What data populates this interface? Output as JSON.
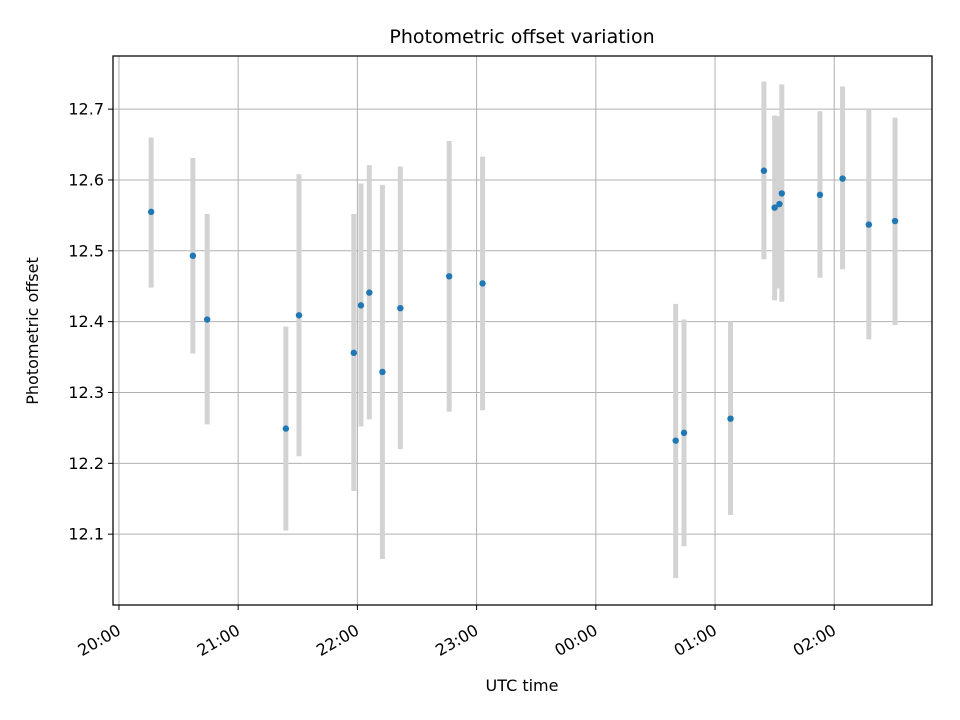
{
  "chart_data": {
    "type": "scatter",
    "title": "Photometric offset variation",
    "xlabel": "UTC time",
    "ylabel": "Photometric offset",
    "grid": true,
    "x_axis_unit": "hours (UTC), values past 24 are after midnight",
    "xlim": [
      19.95,
      26.82
    ],
    "ylim": [
      12.0,
      12.775
    ],
    "x_ticks": [
      {
        "value": 20,
        "label": "20:00"
      },
      {
        "value": 21,
        "label": "21:00"
      },
      {
        "value": 22,
        "label": "22:00"
      },
      {
        "value": 23,
        "label": "23:00"
      },
      {
        "value": 24,
        "label": "00:00"
      },
      {
        "value": 25,
        "label": "01:00"
      },
      {
        "value": 26,
        "label": "02:00"
      }
    ],
    "y_ticks": [
      {
        "value": 12.1,
        "label": "12.1"
      },
      {
        "value": 12.2,
        "label": "12.2"
      },
      {
        "value": 12.3,
        "label": "12.3"
      },
      {
        "value": 12.4,
        "label": "12.4"
      },
      {
        "value": 12.5,
        "label": "12.5"
      },
      {
        "value": 12.6,
        "label": "12.6"
      },
      {
        "value": 12.7,
        "label": "12.7"
      }
    ],
    "point_color": "#1f77b4",
    "errorbar_color": "#d3d3d3",
    "series": [
      {
        "points": [
          {
            "x": 20.27,
            "y": 12.555,
            "lo": 12.448,
            "hi": 12.66
          },
          {
            "x": 20.62,
            "y": 12.493,
            "lo": 12.355,
            "hi": 12.631
          },
          {
            "x": 20.74,
            "y": 12.403,
            "lo": 12.255,
            "hi": 12.552
          },
          {
            "x": 21.4,
            "y": 12.249,
            "lo": 12.105,
            "hi": 12.393
          },
          {
            "x": 21.51,
            "y": 12.409,
            "lo": 12.21,
            "hi": 12.608
          },
          {
            "x": 21.97,
            "y": 12.356,
            "lo": 12.161,
            "hi": 12.552
          },
          {
            "x": 22.03,
            "y": 12.423,
            "lo": 12.252,
            "hi": 12.595
          },
          {
            "x": 22.1,
            "y": 12.441,
            "lo": 12.262,
            "hi": 12.621
          },
          {
            "x": 22.21,
            "y": 12.329,
            "lo": 12.065,
            "hi": 12.593
          },
          {
            "x": 22.36,
            "y": 12.419,
            "lo": 12.22,
            "hi": 12.619
          },
          {
            "x": 22.77,
            "y": 12.464,
            "lo": 12.273,
            "hi": 12.655
          },
          {
            "x": 23.05,
            "y": 12.454,
            "lo": 12.275,
            "hi": 12.633
          },
          {
            "x": 24.67,
            "y": 12.232,
            "lo": 12.038,
            "hi": 12.425
          },
          {
            "x": 24.74,
            "y": 12.243,
            "lo": 12.083,
            "hi": 12.403
          },
          {
            "x": 25.13,
            "y": 12.263,
            "lo": 12.127,
            "hi": 12.4
          },
          {
            "x": 25.41,
            "y": 12.613,
            "lo": 12.488,
            "hi": 12.739
          },
          {
            "x": 25.5,
            "y": 12.561,
            "lo": 12.43,
            "hi": 12.691
          },
          {
            "x": 25.54,
            "y": 12.566,
            "lo": 12.447,
            "hi": 12.69
          },
          {
            "x": 25.56,
            "y": 12.581,
            "lo": 12.428,
            "hi": 12.735
          },
          {
            "x": 25.88,
            "y": 12.579,
            "lo": 12.462,
            "hi": 12.697
          },
          {
            "x": 26.07,
            "y": 12.602,
            "lo": 12.474,
            "hi": 12.732
          },
          {
            "x": 26.29,
            "y": 12.537,
            "lo": 12.375,
            "hi": 12.7
          },
          {
            "x": 26.51,
            "y": 12.542,
            "lo": 12.395,
            "hi": 12.688
          }
        ]
      }
    ]
  }
}
